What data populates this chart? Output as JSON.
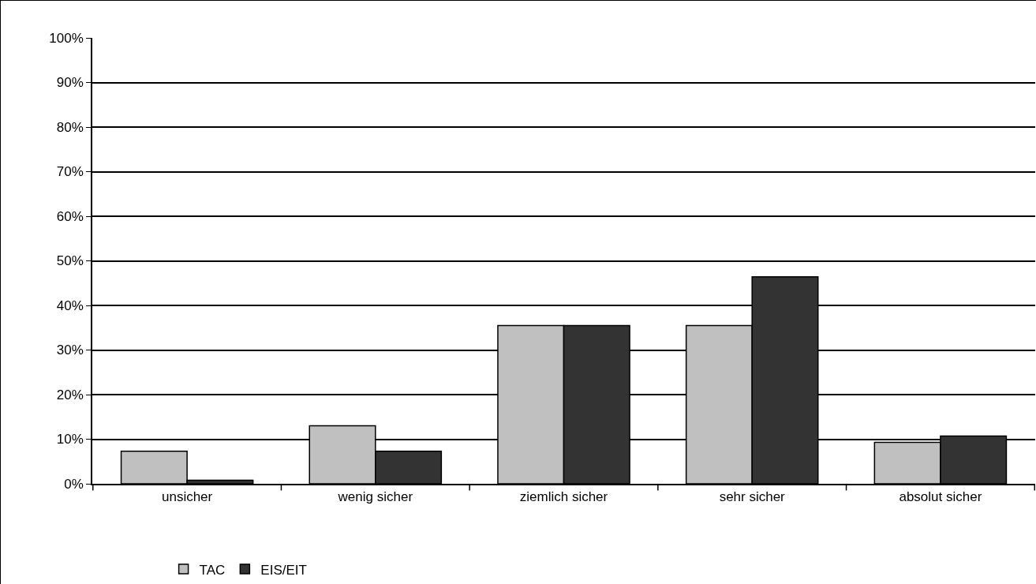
{
  "chart_data": {
    "type": "bar",
    "categories": [
      "unsicher",
      "wenig sicher",
      "ziemlich sicher",
      "sehr sicher",
      "absolut sicher"
    ],
    "series": [
      {
        "name": "TAC",
        "color": "#c0c0c0",
        "values": [
          7.3,
          13,
          35.5,
          35.5,
          9.3
        ]
      },
      {
        "name": "EIS/EIT",
        "color": "#333333",
        "values": [
          0.8,
          7.3,
          35.5,
          46.4,
          10.7
        ]
      }
    ],
    "ylim": [
      0,
      100
    ],
    "yticks": [
      {
        "value": 0,
        "label": "0%"
      },
      {
        "value": 10,
        "label": "10%"
      },
      {
        "value": 20,
        "label": "20%"
      },
      {
        "value": 30,
        "label": "30%"
      },
      {
        "value": 40,
        "label": "40%"
      },
      {
        "value": 50,
        "label": "50%"
      },
      {
        "value": 60,
        "label": "60%"
      },
      {
        "value": 70,
        "label": "70%"
      },
      {
        "value": 80,
        "label": "80%"
      },
      {
        "value": 90,
        "label": "90%"
      },
      {
        "value": 100,
        "label": "100%"
      }
    ],
    "grid": "y",
    "legend": "bottom left"
  }
}
